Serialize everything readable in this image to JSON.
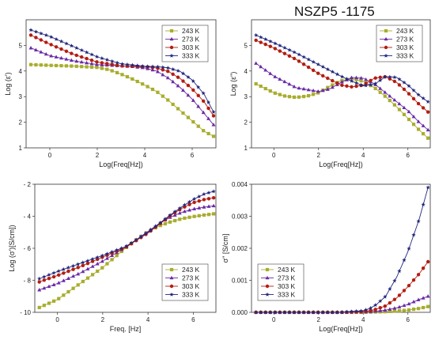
{
  "figure": {
    "title": "NSZP5 -1175"
  },
  "series_styles": [
    {
      "name": "243 K",
      "color": "#a8ad2c",
      "marker": "square"
    },
    {
      "name": "273 K",
      "color": "#6a2aa6",
      "marker": "triangle"
    },
    {
      "name": "303 K",
      "color": "#b31d12",
      "marker": "circle"
    },
    {
      "name": "333 K",
      "color": "#22287c",
      "marker": "star"
    }
  ],
  "chart_data": [
    {
      "type": "line",
      "ylabel": "Log (ε')",
      "xlabel": "Log(Freq[Hz])",
      "xlim": [
        -1,
        7
      ],
      "ylim": [
        1,
        6
      ],
      "xticks": [
        0,
        2,
        4,
        6
      ],
      "yticks": [
        1,
        2,
        3,
        4,
        5
      ],
      "legend": "top-right",
      "series": [
        {
          "name": "243 K",
          "x": [
            -0.8,
            0,
            1,
            2,
            2.5,
            3,
            3.5,
            4,
            4.5,
            5,
            5.5,
            6,
            6.5,
            6.9
          ],
          "y": [
            4.25,
            4.22,
            4.19,
            4.14,
            4.05,
            3.88,
            3.68,
            3.45,
            3.2,
            2.85,
            2.45,
            2.05,
            1.65,
            1.45
          ]
        },
        {
          "name": "273 K",
          "x": [
            -0.8,
            0,
            1,
            2,
            3,
            3.5,
            4,
            4.5,
            5,
            5.5,
            6,
            6.5,
            6.9
          ],
          "y": [
            4.9,
            4.6,
            4.4,
            4.25,
            4.2,
            4.17,
            4.12,
            4.0,
            3.72,
            3.35,
            2.9,
            2.35,
            1.9
          ]
        },
        {
          "name": "303 K",
          "x": [
            -0.8,
            0,
            1,
            2,
            3,
            4,
            4.5,
            5,
            5.5,
            6,
            6.5,
            6.9
          ],
          "y": [
            5.4,
            5.05,
            4.65,
            4.35,
            4.2,
            4.17,
            4.12,
            3.98,
            3.7,
            3.3,
            2.8,
            2.25
          ]
        },
        {
          "name": "333 K",
          "x": [
            -0.8,
            0,
            1,
            2,
            3,
            4,
            4.5,
            5,
            5.5,
            6,
            6.5,
            6.9
          ],
          "y": [
            5.6,
            5.35,
            4.95,
            4.55,
            4.28,
            4.18,
            4.17,
            4.12,
            3.98,
            3.65,
            3.1,
            2.4
          ]
        }
      ]
    },
    {
      "type": "line",
      "ylabel": "Log (ε\")",
      "xlabel": "Log(Freq[Hz])",
      "xlim": [
        -1,
        7
      ],
      "ylim": [
        1,
        6
      ],
      "xticks": [
        0,
        2,
        4,
        6
      ],
      "yticks": [
        1,
        2,
        3,
        4,
        5
      ],
      "legend": "top-right",
      "series": [
        {
          "name": "243 K",
          "x": [
            -0.8,
            0,
            0.5,
            1,
            1.5,
            2,
            2.5,
            3,
            3.5,
            4,
            4.5,
            5,
            5.5,
            6,
            6.5,
            6.9
          ],
          "y": [
            3.5,
            3.15,
            3.02,
            2.97,
            3.02,
            3.15,
            3.4,
            3.62,
            3.7,
            3.6,
            3.35,
            3.0,
            2.6,
            2.15,
            1.7,
            1.38
          ]
        },
        {
          "name": "273 K",
          "x": [
            -0.8,
            0,
            1,
            2,
            2.5,
            3,
            3.5,
            4,
            4.5,
            5,
            5.5,
            6,
            6.5,
            6.9
          ],
          "y": [
            4.3,
            3.8,
            3.35,
            3.2,
            3.3,
            3.55,
            3.75,
            3.72,
            3.5,
            3.15,
            2.8,
            2.45,
            2.0,
            1.7
          ]
        },
        {
          "name": "303 K",
          "x": [
            -0.8,
            0,
            1,
            2,
            3,
            3.5,
            4,
            4.5,
            5,
            5.5,
            6,
            6.5,
            6.9
          ],
          "y": [
            5.2,
            4.9,
            4.45,
            3.9,
            3.45,
            3.38,
            3.45,
            3.72,
            3.78,
            3.55,
            3.15,
            2.7,
            2.4
          ]
        },
        {
          "name": "333 K",
          "x": [
            -0.8,
            0,
            1,
            2,
            3,
            3.5,
            4,
            4.5,
            5,
            5.5,
            6,
            6.5,
            6.9
          ],
          "y": [
            5.4,
            5.1,
            4.7,
            4.25,
            3.8,
            3.6,
            3.42,
            3.48,
            3.78,
            3.75,
            3.45,
            3.05,
            2.8
          ]
        }
      ]
    },
    {
      "type": "line",
      "ylabel": "Log (σ')[S/cm])",
      "xlabel": "Freq. [Hz]",
      "xlim": [
        -1,
        7
      ],
      "ylim": [
        -10,
        -2
      ],
      "xticks": [
        0,
        2,
        4,
        6
      ],
      "yticks": [
        -10,
        -8,
        -6,
        -4,
        -2
      ],
      "legend": "bottom-right",
      "series": [
        {
          "name": "243 K",
          "x": [
            -0.8,
            0,
            1,
            2,
            2.5,
            3,
            3.5,
            4,
            4.5,
            5,
            5.5,
            6,
            6.5,
            6.9
          ],
          "y": [
            -9.7,
            -9.2,
            -8.2,
            -7.2,
            -6.6,
            -6.0,
            -5.45,
            -4.95,
            -4.6,
            -4.35,
            -4.15,
            -4.02,
            -3.92,
            -3.85
          ]
        },
        {
          "name": "273 K",
          "x": [
            -0.8,
            0,
            1,
            2,
            3,
            3.5,
            4,
            4.5,
            5,
            5.5,
            6,
            6.5,
            6.9
          ],
          "y": [
            -8.6,
            -8.2,
            -7.55,
            -6.8,
            -5.95,
            -5.45,
            -4.95,
            -4.45,
            -4.05,
            -3.75,
            -3.55,
            -3.42,
            -3.35
          ]
        },
        {
          "name": "303 K",
          "x": [
            -0.8,
            0,
            1,
            2,
            3,
            4,
            4.5,
            5,
            5.5,
            6,
            6.5,
            6.9
          ],
          "y": [
            -8.1,
            -7.7,
            -7.15,
            -6.55,
            -5.95,
            -5.05,
            -4.5,
            -3.95,
            -3.5,
            -3.15,
            -2.95,
            -2.85
          ]
        },
        {
          "name": "333 K",
          "x": [
            -0.8,
            0,
            1,
            2,
            3,
            4,
            4.5,
            5,
            5.5,
            6,
            6.5,
            6.9
          ],
          "y": [
            -7.9,
            -7.45,
            -6.95,
            -6.45,
            -5.9,
            -5.0,
            -4.45,
            -3.9,
            -3.4,
            -2.95,
            -2.6,
            -2.45
          ]
        }
      ]
    },
    {
      "type": "line",
      "ylabel": "σ\" [S/cm]",
      "xlabel": "Log(Freq[Hz])",
      "xlim": [
        -1,
        7
      ],
      "ylim": [
        0,
        0.004
      ],
      "xticks": [
        0,
        2,
        4,
        6
      ],
      "yticks": [
        0.0,
        0.001,
        0.002,
        0.003,
        0.004
      ],
      "ytick_labels": [
        "0.000",
        "0.001",
        "0.002",
        "0.003",
        "0.004"
      ],
      "legend": "bottom-left",
      "series": [
        {
          "name": "243 K",
          "x": [
            -0.8,
            0,
            1,
            2,
            3,
            4,
            4.5,
            5,
            5.5,
            6,
            6.5,
            6.9
          ],
          "y": [
            0,
            0,
            0,
            0,
            0,
            0,
            1e-05,
            2e-05,
            4e-05,
            7e-05,
            0.00012,
            0.00018
          ]
        },
        {
          "name": "273 K",
          "x": [
            -0.8,
            0,
            1,
            2,
            3,
            4,
            4.5,
            5,
            5.5,
            6,
            6.5,
            6.9
          ],
          "y": [
            0,
            0,
            0,
            0,
            0,
            1e-05,
            3e-05,
            7e-05,
            0.00014,
            0.00025,
            0.0004,
            0.0005
          ]
        },
        {
          "name": "303 K",
          "x": [
            -0.8,
            0,
            1,
            2,
            3,
            4,
            4.5,
            5,
            5.5,
            6,
            6.5,
            6.9
          ],
          "y": [
            0,
            0,
            0,
            0,
            0,
            2e-05,
            8e-05,
            0.0002,
            0.00045,
            0.0008,
            0.0012,
            0.00158
          ]
        },
        {
          "name": "333 K",
          "x": [
            -0.8,
            0,
            1,
            2,
            3,
            4,
            4.3,
            4.6,
            5,
            5.5,
            6,
            6.5,
            6.9
          ],
          "y": [
            0,
            0,
            0,
            0,
            0,
            5e-05,
            0.00012,
            0.00025,
            0.0005,
            0.0011,
            0.0019,
            0.0029,
            0.0039
          ]
        }
      ]
    }
  ]
}
